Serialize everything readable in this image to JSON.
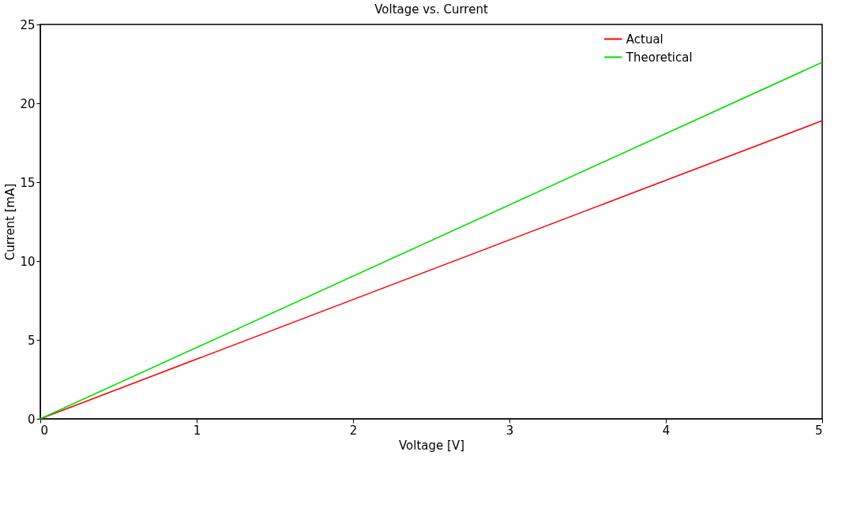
{
  "chart_data": {
    "type": "line",
    "title": "Voltage vs. Current",
    "xlabel": "Voltage [V]",
    "ylabel": "Current [mA]",
    "x": [
      0,
      5
    ],
    "series": [
      {
        "name": "Actual",
        "color": "#ff0000",
        "values": [
          0,
          18.9
        ]
      },
      {
        "name": "Theoretical",
        "color": "#00e000",
        "values": [
          0,
          22.6
        ]
      }
    ],
    "xlim": [
      0,
      5
    ],
    "xticks": [
      0,
      1,
      2,
      3,
      4,
      5
    ],
    "ylim": [
      0,
      25
    ],
    "yticks": [
      0,
      5,
      10,
      15,
      20,
      25
    ],
    "grid": false,
    "legend": "top right",
    "marker": "none",
    "line_style": "solid"
  }
}
